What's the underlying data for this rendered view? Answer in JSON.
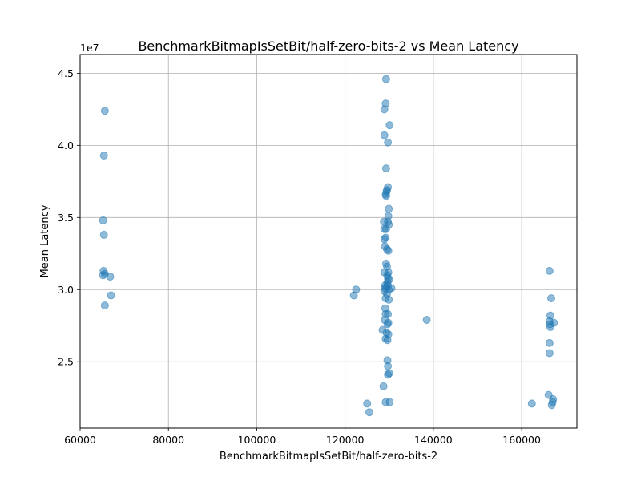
{
  "chart_data": {
    "type": "scatter",
    "title": "BenchmarkBitmapIsSetBit/half-zero-bits-2 vs Mean Latency",
    "xlabel": "BenchmarkBitmapIsSetBit/half-zero-bits-2",
    "ylabel": "Mean Latency",
    "y_offset_label": "1e7",
    "xlim": [
      60000,
      172500
    ],
    "ylim": [
      20400000,
      46300000
    ],
    "xticks": [
      60000,
      80000,
      100000,
      120000,
      140000,
      160000
    ],
    "xtick_labels": [
      "60000",
      "80000",
      "100000",
      "120000",
      "140000",
      "160000"
    ],
    "yticks": [
      25000000,
      30000000,
      35000000,
      40000000,
      45000000
    ],
    "ytick_labels": [
      "2.5",
      "3.0",
      "3.5",
      "4.0",
      "4.5"
    ],
    "grid": true,
    "marker_color": "#1f77b4",
    "marker_alpha": 0.5,
    "points": [
      [
        65600,
        42400000
      ],
      [
        65400,
        39300000
      ],
      [
        65200,
        34800000
      ],
      [
        65400,
        33800000
      ],
      [
        65300,
        31300000
      ],
      [
        65600,
        31100000
      ],
      [
        65200,
        31000000
      ],
      [
        66800,
        30900000
      ],
      [
        67000,
        29600000
      ],
      [
        65600,
        28900000
      ],
      [
        122500,
        30000000
      ],
      [
        122000,
        29600000
      ],
      [
        129300,
        44600000
      ],
      [
        129200,
        42900000
      ],
      [
        128900,
        42500000
      ],
      [
        130100,
        41400000
      ],
      [
        128900,
        40700000
      ],
      [
        129700,
        40200000
      ],
      [
        129300,
        38400000
      ],
      [
        129700,
        37100000
      ],
      [
        129500,
        36900000
      ],
      [
        129400,
        36800000
      ],
      [
        129200,
        36600000
      ],
      [
        129300,
        36500000
      ],
      [
        129900,
        35600000
      ],
      [
        129800,
        35100000
      ],
      [
        129700,
        34700000
      ],
      [
        128800,
        34700000
      ],
      [
        129900,
        34500000
      ],
      [
        129300,
        34200000
      ],
      [
        128900,
        34200000
      ],
      [
        129200,
        33600000
      ],
      [
        128900,
        33500000
      ],
      [
        129000,
        33000000
      ],
      [
        129500,
        32800000
      ],
      [
        129800,
        32700000
      ],
      [
        129300,
        31800000
      ],
      [
        129500,
        31600000
      ],
      [
        128900,
        31200000
      ],
      [
        129800,
        31200000
      ],
      [
        129600,
        31000000
      ],
      [
        129700,
        30800000
      ],
      [
        130000,
        30700000
      ],
      [
        129600,
        30500000
      ],
      [
        129100,
        30300000
      ],
      [
        129000,
        30100000
      ],
      [
        129400,
        30200000
      ],
      [
        129700,
        30300000
      ],
      [
        130500,
        30100000
      ],
      [
        129900,
        30000000
      ],
      [
        128900,
        29900000
      ],
      [
        129500,
        29700000
      ],
      [
        129200,
        29400000
      ],
      [
        129900,
        29300000
      ],
      [
        129100,
        28700000
      ],
      [
        129700,
        28300000
      ],
      [
        129200,
        28300000
      ],
      [
        129000,
        27900000
      ],
      [
        129600,
        27600000
      ],
      [
        129800,
        27700000
      ],
      [
        128500,
        27200000
      ],
      [
        129400,
        27000000
      ],
      [
        129800,
        26900000
      ],
      [
        129200,
        26600000
      ],
      [
        129600,
        26500000
      ],
      [
        129600,
        25100000
      ],
      [
        129700,
        24700000
      ],
      [
        130000,
        24200000
      ],
      [
        129700,
        24100000
      ],
      [
        128700,
        23300000
      ],
      [
        125000,
        22100000
      ],
      [
        130100,
        22200000
      ],
      [
        129200,
        22200000
      ],
      [
        125500,
        21500000
      ],
      [
        138500,
        27900000
      ],
      [
        166300,
        31300000
      ],
      [
        166700,
        29400000
      ],
      [
        166500,
        28200000
      ],
      [
        166300,
        27800000
      ],
      [
        166400,
        27600000
      ],
      [
        167300,
        27700000
      ],
      [
        166500,
        27400000
      ],
      [
        166300,
        26300000
      ],
      [
        166300,
        25600000
      ],
      [
        166100,
        22700000
      ],
      [
        162300,
        22100000
      ],
      [
        167100,
        22400000
      ],
      [
        167000,
        22200000
      ],
      [
        166800,
        22000000
      ]
    ]
  }
}
